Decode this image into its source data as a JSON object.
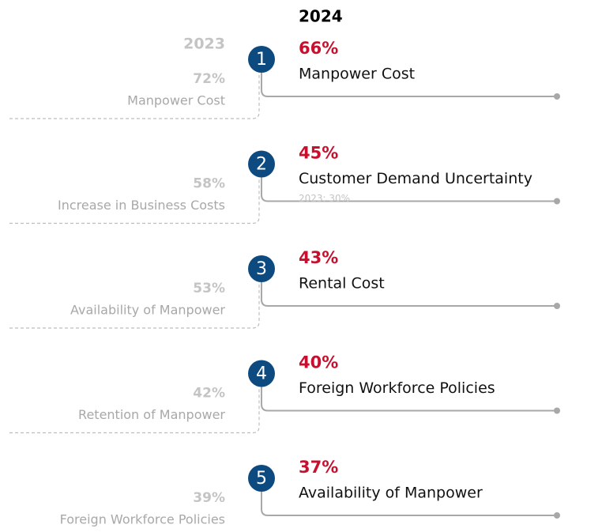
{
  "header": {
    "current_year": "2024",
    "previous_year": "2023"
  },
  "items": [
    {
      "rank": "1",
      "value": "66%",
      "label": "Manpower Cost",
      "prev_value": "72%",
      "prev_label": "Manpower Cost"
    },
    {
      "rank": "2",
      "value": "45%",
      "label": "Customer Demand Uncertainty",
      "note": "2023: 30%",
      "prev_value": "58%",
      "prev_label": "Increase in Business Costs"
    },
    {
      "rank": "3",
      "value": "43%",
      "label": "Rental Cost",
      "prev_value": "53%",
      "prev_label": "Availability of Manpower"
    },
    {
      "rank": "4",
      "value": "40%",
      "label": "Foreign Workforce Policies",
      "prev_value": "42%",
      "prev_label": "Retention of Manpower"
    },
    {
      "rank": "5",
      "value": "37%",
      "label": "Availability of Manpower",
      "prev_value": "39%",
      "prev_label": "Foreign Workforce Policies"
    }
  ]
}
